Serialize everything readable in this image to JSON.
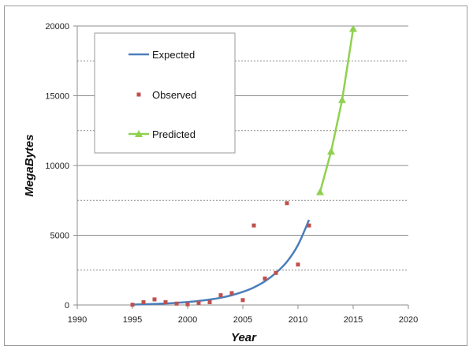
{
  "chart_data": {
    "type": "line",
    "title": "",
    "xlabel": "Year",
    "ylabel": "MegaBytes",
    "xlim": [
      1990,
      2020
    ],
    "ylim": [
      0,
      20000
    ],
    "x_ticks": [
      1990,
      1995,
      2000,
      2005,
      2010,
      2015,
      2020
    ],
    "y_ticks": [
      0,
      5000,
      10000,
      15000,
      20000
    ],
    "grid": "horizontal (major solid, minor dashed)",
    "legend_position": "top-left",
    "series": [
      {
        "name": "Expected",
        "kind": "line",
        "color": "#4a7ebb",
        "x": [
          1995,
          1996,
          1997,
          1998,
          1999,
          2000,
          2001,
          2002,
          2003,
          2004,
          2005,
          2006,
          2007,
          2008,
          2009,
          2010,
          2011
        ],
        "y": [
          30,
          50,
          75,
          105,
          150,
          210,
          290,
          390,
          520,
          700,
          940,
          1260,
          1700,
          2300,
          3100,
          4300,
          6100
        ]
      },
      {
        "name": "Observed",
        "kind": "scatter",
        "color": "#c0504d",
        "x": [
          1995,
          1996,
          1997,
          1998,
          1999,
          2000,
          2001,
          2002,
          2003,
          2004,
          2005,
          2006,
          2007,
          2008,
          2009,
          2010,
          2011
        ],
        "y": [
          20,
          200,
          400,
          200,
          100,
          50,
          150,
          200,
          700,
          850,
          350,
          5700,
          1900,
          2300,
          7300,
          2900,
          5700
        ]
      },
      {
        "name": "Predicted",
        "kind": "line-markers",
        "color": "#8fd14f",
        "x": [
          2012,
          2013,
          2014,
          2015
        ],
        "y": [
          8100,
          11000,
          14700,
          19800
        ]
      }
    ]
  }
}
